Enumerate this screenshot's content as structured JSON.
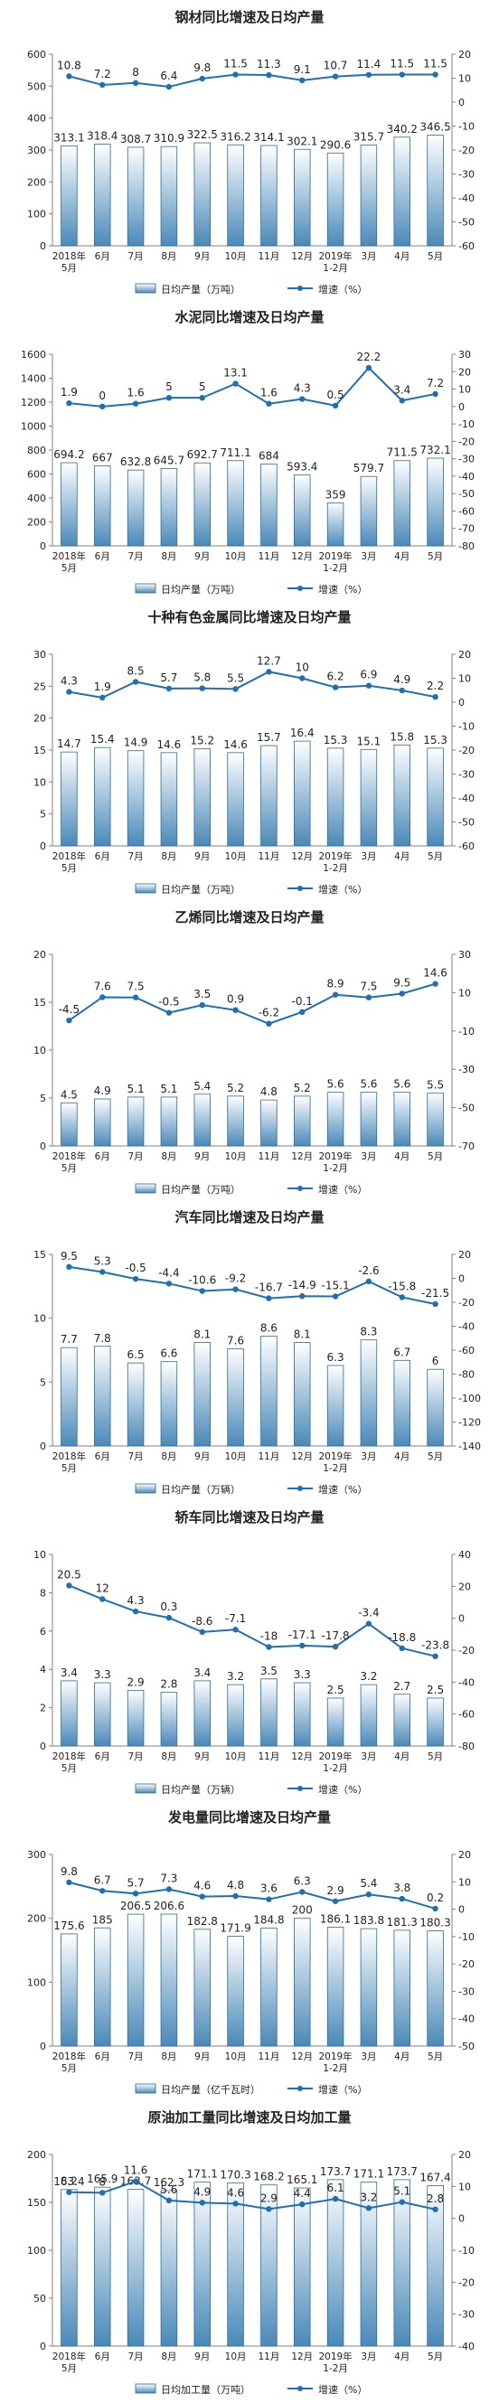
{
  "chart_data": [
    {
      "type": "bar",
      "title": "钢材同比增速及日均产量",
      "categories": [
        "2018年\n5月",
        "6月",
        "7月",
        "8月",
        "9月",
        "10月",
        "11月",
        "12月",
        "2019年\n1-2月",
        "3月",
        "4月",
        "5月"
      ],
      "series": [
        {
          "name": "日均产量（万吨）",
          "type": "bar",
          "axis": "left",
          "values": [
            313.1,
            318.4,
            308.7,
            310.9,
            322.5,
            316.2,
            314.1,
            302.1,
            290.6,
            315.7,
            340.2,
            346.5
          ]
        },
        {
          "name": "增速（%）",
          "type": "line",
          "axis": "right",
          "values": [
            10.8,
            7.2,
            8.0,
            6.4,
            9.8,
            11.5,
            11.3,
            9.1,
            10.7,
            11.4,
            11.5,
            11.5
          ]
        }
      ],
      "ylim": [
        0,
        600
      ],
      "yticks": [
        0,
        100,
        200,
        300,
        400,
        500,
        600
      ],
      "y2lim": [
        -60,
        20
      ],
      "y2ticks": [
        -60,
        -50,
        -40,
        -30,
        -20,
        -10,
        0,
        10,
        20
      ],
      "grid": false,
      "legend": "bottom"
    },
    {
      "type": "bar",
      "title": "水泥同比增速及日均产量",
      "categories": [
        "2018年\n5月",
        "6月",
        "7月",
        "8月",
        "9月",
        "10月",
        "11月",
        "12月",
        "2019年\n1-2月",
        "3月",
        "4月",
        "5月"
      ],
      "series": [
        {
          "name": "日均产量（万吨）",
          "type": "bar",
          "axis": "left",
          "values": [
            694.2,
            667.0,
            632.8,
            645.7,
            692.7,
            711.1,
            684.0,
            593.4,
            359.0,
            579.7,
            711.5,
            732.1
          ]
        },
        {
          "name": "增速（%）",
          "type": "line",
          "axis": "right",
          "values": [
            1.9,
            0.0,
            1.6,
            5.0,
            5.0,
            13.1,
            1.6,
            4.3,
            0.5,
            22.2,
            3.4,
            7.2
          ]
        }
      ],
      "ylim": [
        0,
        1600
      ],
      "yticks": [
        0,
        200,
        400,
        600,
        800,
        1000,
        1200,
        1400,
        1600
      ],
      "y2lim": [
        -80,
        30
      ],
      "y2ticks": [
        -80,
        -70,
        -60,
        -50,
        -40,
        -30,
        -20,
        -10,
        0,
        10,
        20,
        30
      ],
      "grid": false,
      "legend": "bottom"
    },
    {
      "type": "bar",
      "title": "十种有色金属同比增速及日均产量",
      "categories": [
        "2018年\n5月",
        "6月",
        "7月",
        "8月",
        "9月",
        "10月",
        "11月",
        "12月",
        "2019年\n1-2月",
        "3月",
        "4月",
        "5月"
      ],
      "series": [
        {
          "name": "日均产量（万吨）",
          "type": "bar",
          "axis": "left",
          "values": [
            14.7,
            15.4,
            14.9,
            14.6,
            15.2,
            14.6,
            15.7,
            16.4,
            15.3,
            15.1,
            15.8,
            15.3
          ]
        },
        {
          "name": "增速（%）",
          "type": "line",
          "axis": "right",
          "values": [
            4.3,
            1.9,
            8.5,
            5.7,
            5.8,
            5.5,
            12.7,
            10.0,
            6.2,
            6.9,
            4.9,
            2.2
          ]
        }
      ],
      "ylim": [
        0,
        30
      ],
      "yticks": [
        0,
        5,
        10,
        15,
        20,
        25,
        30
      ],
      "y2lim": [
        -60,
        20
      ],
      "y2ticks": [
        -60,
        -50,
        -40,
        -30,
        -20,
        -10,
        0,
        10,
        20
      ],
      "grid": false,
      "legend": "bottom"
    },
    {
      "type": "bar",
      "title": "乙烯同比增速及日均产量",
      "categories": [
        "2018年\n5月",
        "6月",
        "7月",
        "8月",
        "9月",
        "10月",
        "11月",
        "12月",
        "2019年\n1-2月",
        "3月",
        "4月",
        "5月"
      ],
      "series": [
        {
          "name": "日均产量（万吨）",
          "type": "bar",
          "axis": "left",
          "values": [
            4.5,
            4.9,
            5.1,
            5.1,
            5.4,
            5.2,
            4.8,
            5.2,
            5.6,
            5.6,
            5.6,
            5.5
          ]
        },
        {
          "name": "增速（%）",
          "type": "line",
          "axis": "right",
          "values": [
            -4.5,
            7.6,
            7.5,
            -0.5,
            3.5,
            0.9,
            -6.2,
            -0.1,
            8.9,
            7.5,
            9.5,
            14.6
          ]
        }
      ],
      "ylim": [
        0,
        20
      ],
      "yticks": [
        0,
        5,
        10,
        15,
        20
      ],
      "y2lim": [
        -70,
        30
      ],
      "y2ticks": [
        -70,
        -50,
        -30,
        -10,
        10,
        30
      ],
      "grid": false,
      "legend": "bottom"
    },
    {
      "type": "bar",
      "title": "汽车同比增速及日均产量",
      "categories": [
        "2018年\n5月",
        "6月",
        "7月",
        "8月",
        "9月",
        "10月",
        "11月",
        "12月",
        "2019年\n1-2月",
        "3月",
        "4月",
        "5月"
      ],
      "series": [
        {
          "name": "日均产量（万辆）",
          "type": "bar",
          "axis": "left",
          "values": [
            7.7,
            7.8,
            6.5,
            6.6,
            8.1,
            7.6,
            8.6,
            8.1,
            6.3,
            8.3,
            6.7,
            6.0
          ]
        },
        {
          "name": "增速（%）",
          "type": "line",
          "axis": "right",
          "values": [
            9.5,
            5.3,
            -0.5,
            -4.4,
            -10.6,
            -9.2,
            -16.7,
            -14.9,
            -15.1,
            -2.6,
            -15.8,
            -21.5
          ]
        }
      ],
      "ylim": [
        0,
        15
      ],
      "yticks": [
        0,
        5,
        10,
        15
      ],
      "y2lim": [
        -140,
        20
      ],
      "y2ticks": [
        -140,
        -120,
        -100,
        -80,
        -60,
        -40,
        -20,
        0,
        20
      ],
      "grid": false,
      "legend": "bottom"
    },
    {
      "type": "bar",
      "title": "轿车同比增速及日均产量",
      "categories": [
        "2018年\n5月",
        "6月",
        "7月",
        "8月",
        "9月",
        "10月",
        "11月",
        "12月",
        "2019年\n1-2月",
        "3月",
        "4月",
        "5月"
      ],
      "series": [
        {
          "name": "日均产量（万辆）",
          "type": "bar",
          "axis": "left",
          "values": [
            3.4,
            3.3,
            2.9,
            2.8,
            3.4,
            3.2,
            3.5,
            3.3,
            2.5,
            3.2,
            2.7,
            2.5
          ]
        },
        {
          "name": "增速（%）",
          "type": "line",
          "axis": "right",
          "values": [
            20.5,
            12.0,
            4.3,
            0.3,
            -8.6,
            -7.1,
            -18.0,
            -17.1,
            -17.8,
            -3.4,
            -18.8,
            -23.8
          ]
        }
      ],
      "ylim": [
        0,
        10
      ],
      "yticks": [
        0,
        2,
        4,
        6,
        8,
        10
      ],
      "y2lim": [
        -80,
        40
      ],
      "y2ticks": [
        -80,
        -60,
        -40,
        -20,
        0,
        20,
        40
      ],
      "grid": false,
      "legend": "bottom"
    },
    {
      "type": "bar",
      "title": "发电量同比增速及日均产量",
      "categories": [
        "2018年\n5月",
        "6月",
        "7月",
        "8月",
        "9月",
        "10月",
        "11月",
        "12月",
        "2019年\n1-2月",
        "3月",
        "4月",
        "5月"
      ],
      "series": [
        {
          "name": "日均产量（亿千瓦时）",
          "type": "bar",
          "axis": "left",
          "values": [
            175.6,
            185.0,
            206.5,
            206.6,
            182.8,
            171.9,
            184.8,
            200.0,
            186.1,
            183.8,
            181.3,
            180.3
          ]
        },
        {
          "name": "增速（%）",
          "type": "line",
          "axis": "right",
          "values": [
            9.8,
            6.7,
            5.7,
            7.3,
            4.6,
            4.8,
            3.6,
            6.3,
            2.9,
            5.4,
            3.8,
            0.2
          ]
        }
      ],
      "ylim": [
        0,
        300
      ],
      "yticks": [
        0,
        100,
        200,
        300
      ],
      "y2lim": [
        -50,
        20
      ],
      "y2ticks": [
        -50,
        -40,
        -30,
        -20,
        -10,
        0,
        10,
        20
      ],
      "grid": false,
      "legend": "bottom"
    },
    {
      "type": "bar",
      "title": "原油加工量同比增速及日均加工量",
      "categories": [
        "2018年\n5月",
        "6月",
        "7月",
        "8月",
        "9月",
        "10月",
        "11月",
        "12月",
        "2019年\n1-2月",
        "3月",
        "4月",
        "5月"
      ],
      "series": [
        {
          "name": "日均加工量（万吨）",
          "type": "bar",
          "axis": "left",
          "values": [
            163.4,
            165.9,
            163.7,
            162.3,
            171.1,
            170.3,
            168.2,
            165.1,
            173.7,
            171.1,
            173.7,
            167.4
          ]
        },
        {
          "name": "增速（%）",
          "type": "line",
          "axis": "right",
          "values": [
            8.2,
            8.0,
            11.6,
            5.6,
            4.9,
            4.6,
            2.9,
            4.4,
            6.1,
            3.2,
            5.1,
            2.8
          ]
        }
      ],
      "ylim": [
        0,
        200
      ],
      "yticks": [
        0,
        50,
        100,
        150,
        200
      ],
      "y2lim": [
        -40,
        20
      ],
      "y2ticks": [
        -40,
        -30,
        -20,
        -10,
        0,
        10,
        20
      ],
      "grid": false,
      "legend": "bottom"
    }
  ],
  "colors": {
    "bar_fill_top": "#ffffff",
    "bar_fill_bottom": "#4a89b8",
    "bar_stroke": "#2e6a98",
    "line": "#1f6fb2",
    "axis": "#808080",
    "text": "#222222"
  }
}
